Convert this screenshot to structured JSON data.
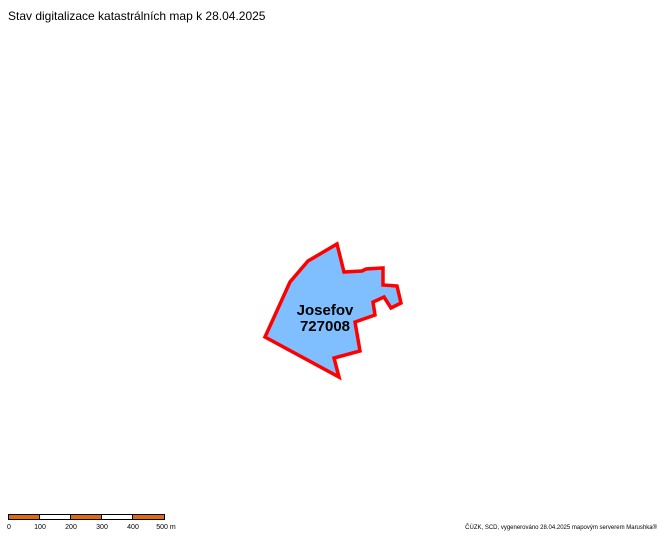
{
  "map": {
    "title": "Stav digitalizace katastrálních map k 28.04.2025",
    "parcel": {
      "name": "Josefov",
      "code": "727008",
      "fill_color": "#80bfff",
      "border_color": "#ff0000"
    },
    "scale_bar": {
      "labels": [
        "0",
        "100",
        "200",
        "300",
        "400",
        "500 m"
      ],
      "colors": [
        "#e06a10",
        "#ffffff",
        "#e06a10",
        "#ffffff",
        "#e06a10"
      ]
    },
    "credit": "ČÚZK, SCD, vygenerováno 28.04.2025 mapovým serverem Marushka®"
  }
}
